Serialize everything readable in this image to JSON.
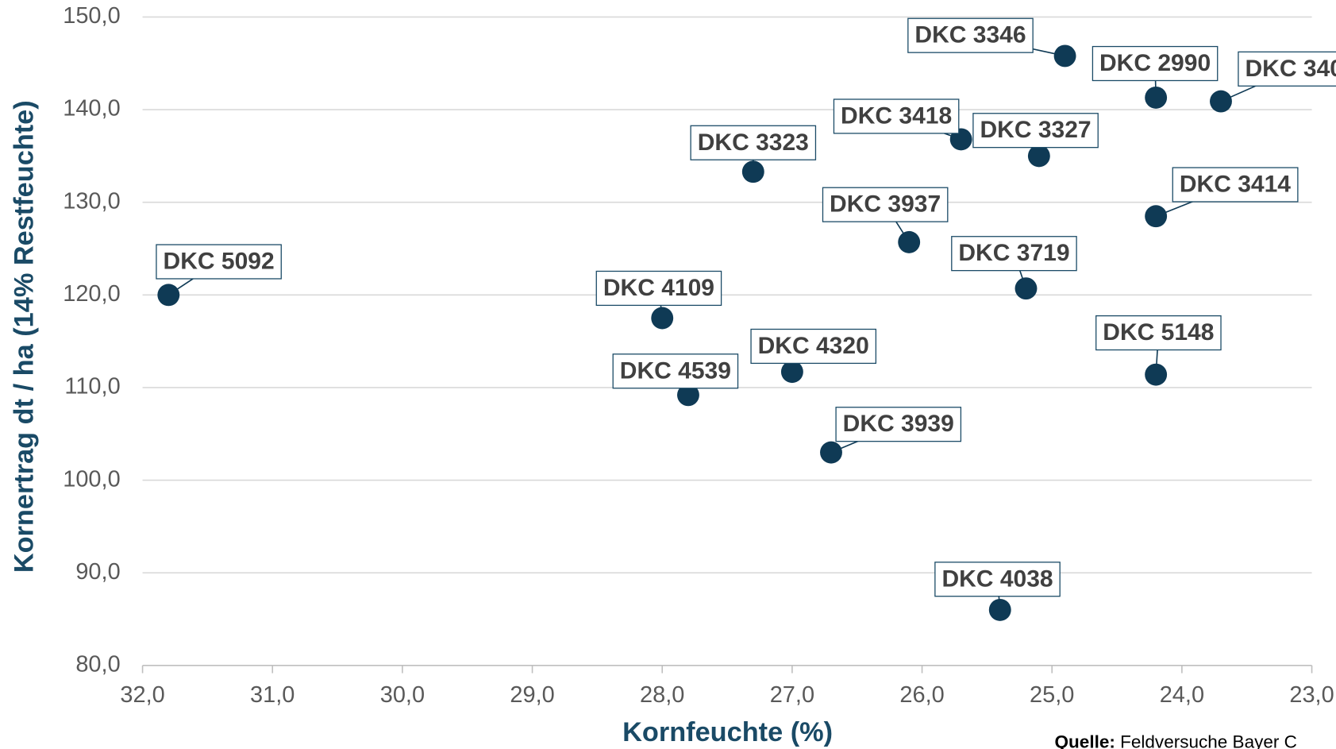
{
  "chart_data": {
    "type": "scatter",
    "x_label": "Kornfeuchte (%)",
    "y_label": "Kornertrag dt / ha (14% Restfeuchte)",
    "source_label": "Quelle:",
    "source_text": "Feldversuche Bayer C",
    "color": "#0f3a55",
    "grid": true,
    "xlim": [
      32,
      23
    ],
    "ylim": [
      80,
      150
    ],
    "xticks": [
      {
        "value": 32,
        "label": "32,0"
      },
      {
        "value": 31,
        "label": "31,0"
      },
      {
        "value": 30,
        "label": "30,0"
      },
      {
        "value": 29,
        "label": "29,0"
      },
      {
        "value": 28,
        "label": "28,0"
      },
      {
        "value": 27,
        "label": "27,0"
      },
      {
        "value": 26,
        "label": "26,0"
      },
      {
        "value": 25,
        "label": "25,0"
      },
      {
        "value": 24,
        "label": "24,0"
      },
      {
        "value": 23,
        "label": "23,0"
      }
    ],
    "yticks": [
      {
        "value": 80,
        "label": "80,0"
      },
      {
        "value": 90,
        "label": "90,0"
      },
      {
        "value": 100,
        "label": "100,0"
      },
      {
        "value": 110,
        "label": "110,0"
      },
      {
        "value": 120,
        "label": "120,0"
      },
      {
        "value": 130,
        "label": "130,0"
      },
      {
        "value": 140,
        "label": "140,0"
      },
      {
        "value": 150,
        "label": "150,0"
      }
    ],
    "labels": [
      "DKC 5092",
      "DKC 4109",
      "DKC 4539",
      "DKC 4320",
      "DKC 3323",
      "DKC 3939",
      "DKC 3937",
      "DKC 3418",
      "DKC 3327",
      "DKC 3719",
      "DKC 4038",
      "DKC 3346",
      "DKC 2990",
      "DKC 340",
      "DKC 3414",
      "DKC 5148"
    ],
    "x": [
      31.8,
      28.0,
      27.8,
      27.0,
      27.3,
      26.7,
      26.1,
      25.7,
      25.1,
      25.2,
      25.4,
      24.9,
      24.2,
      23.7,
      24.2,
      24.2
    ],
    "values": [
      120.0,
      117.5,
      109.2,
      111.7,
      133.3,
      103.0,
      125.7,
      136.8,
      135.0,
      120.7,
      86.0,
      145.8,
      141.3,
      140.9,
      128.5,
      111.4
    ]
  }
}
